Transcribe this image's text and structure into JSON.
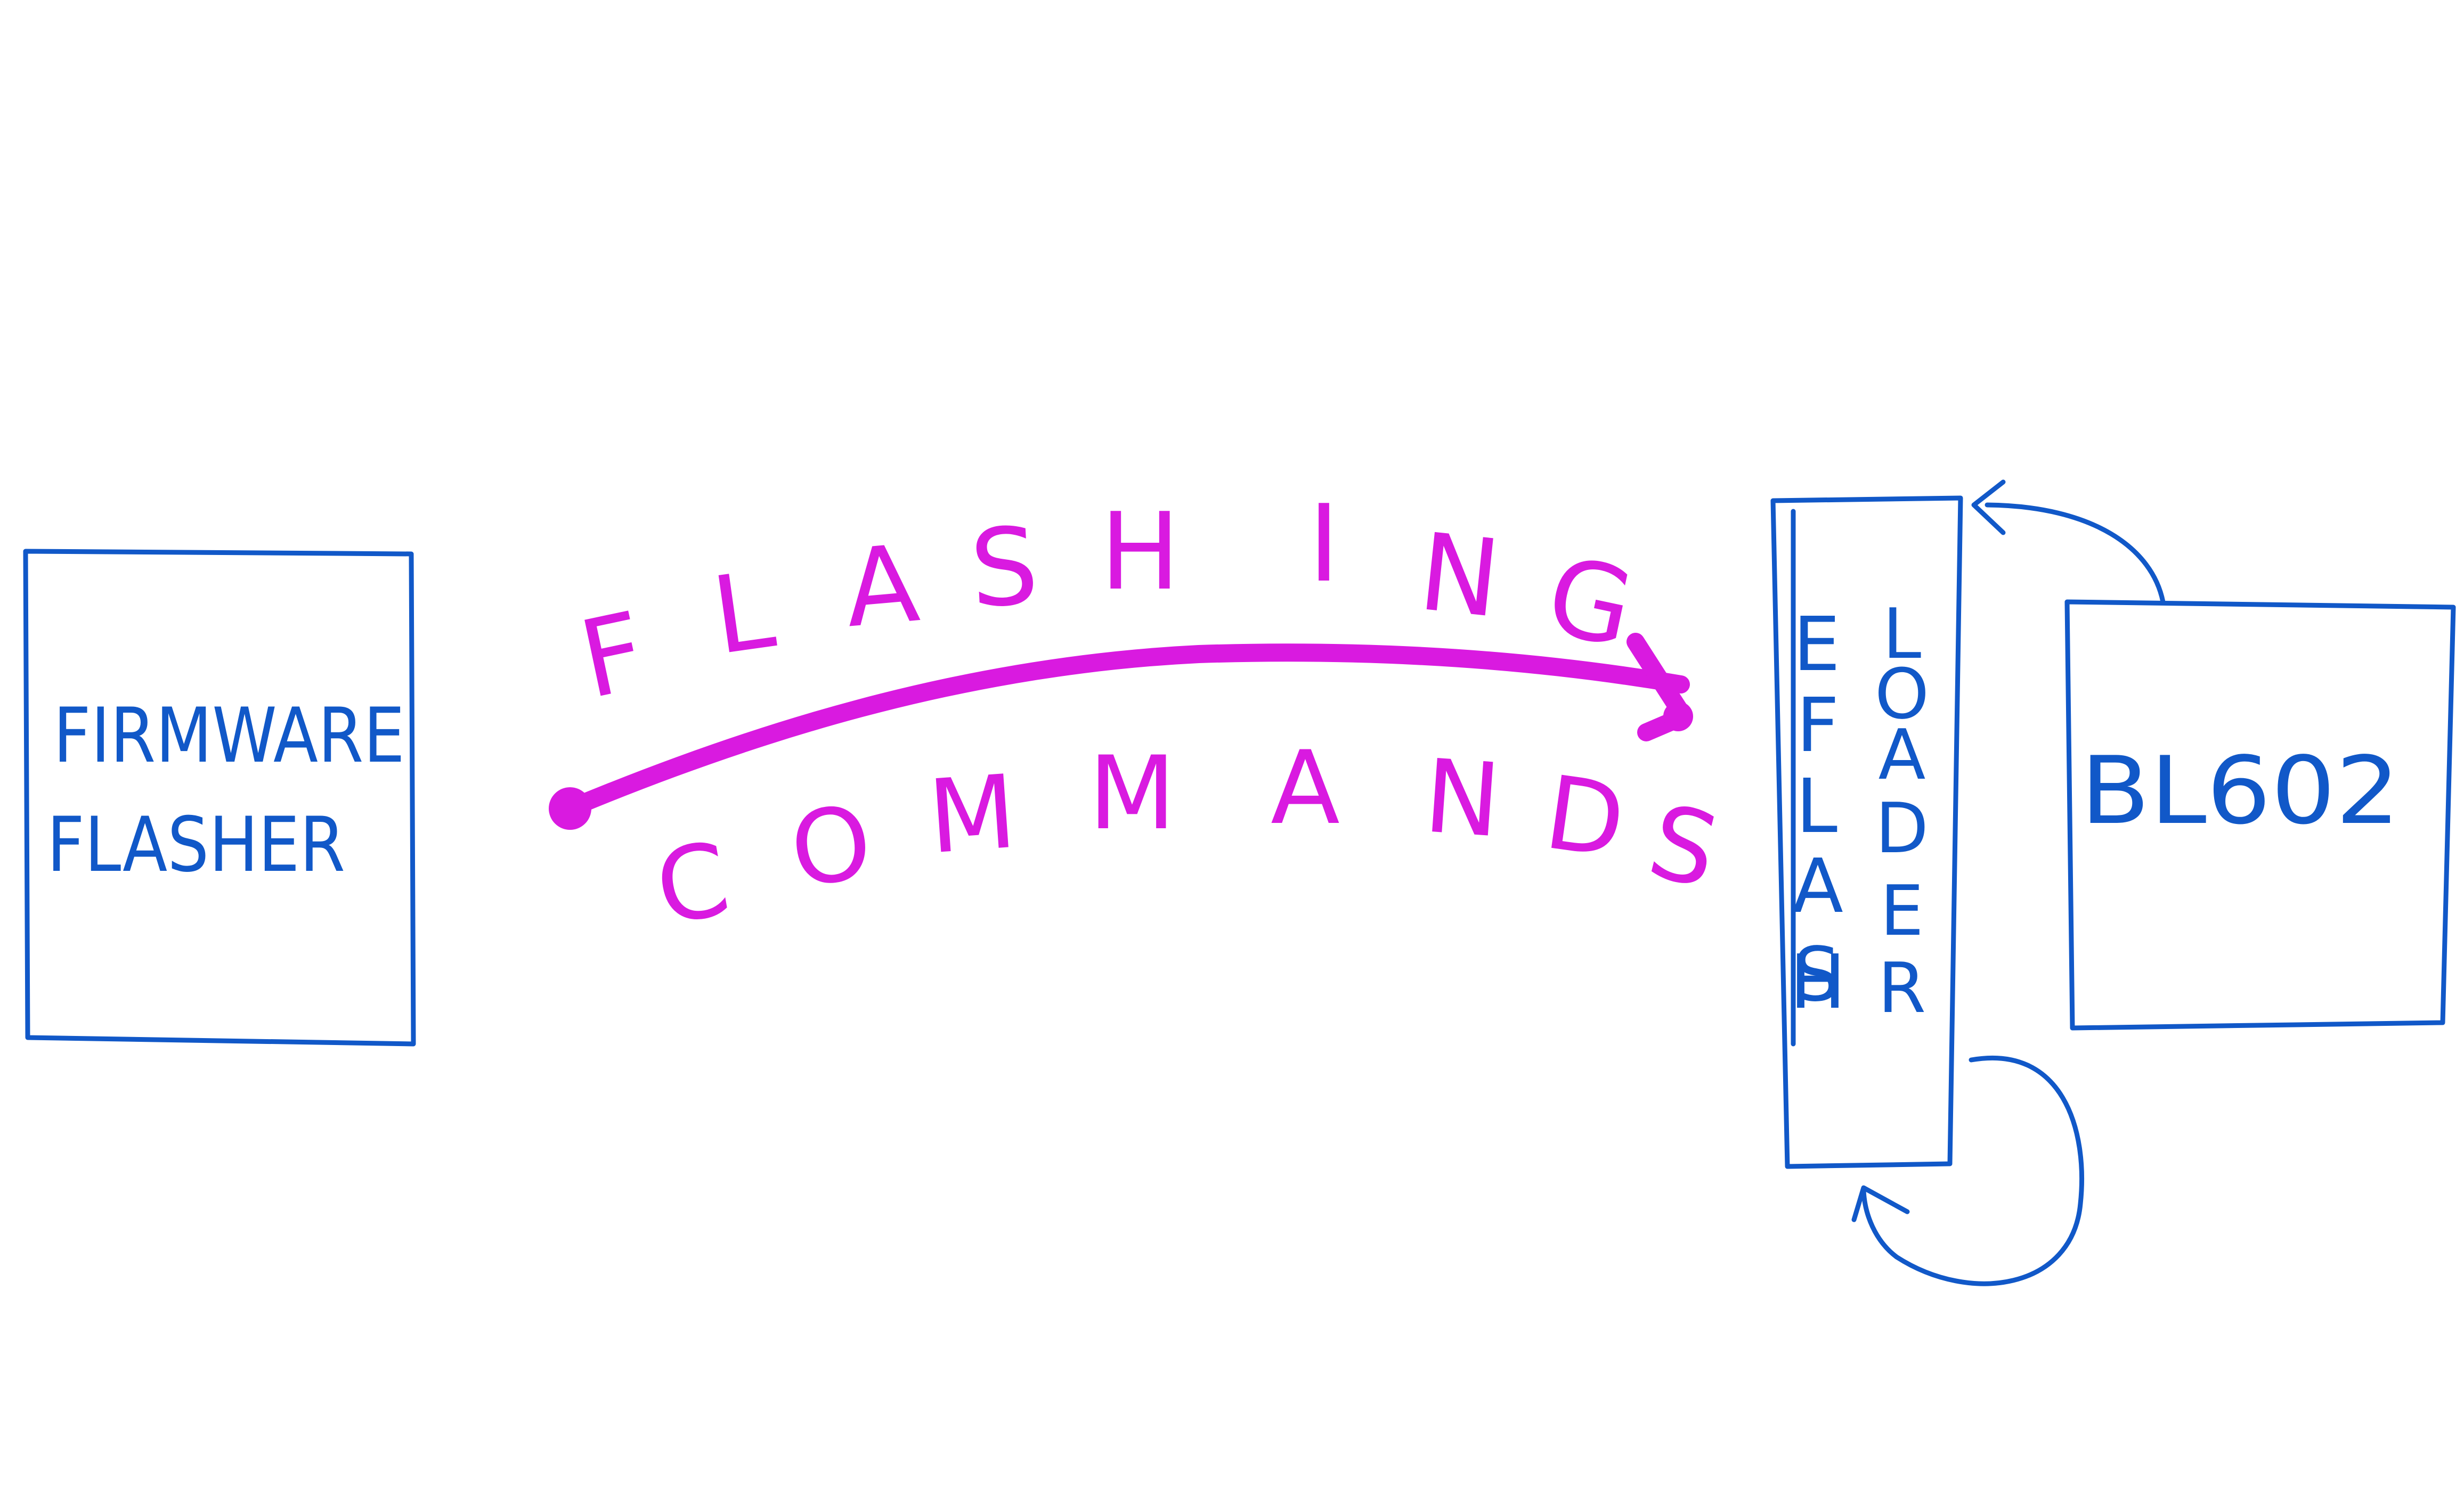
{
  "colors": {
    "blue": "#1158c8",
    "magenta": "#d91ae0",
    "background": "#ffffff"
  },
  "nodes": {
    "firmware_flasher": {
      "line1": "FIRMWARE",
      "line2": "FLASHER"
    },
    "eflash_loader": {
      "col1": [
        "E",
        "F",
        "L",
        "A",
        "S",
        "H"
      ],
      "col2": [
        "L",
        "O",
        "A",
        "D",
        "E",
        "R"
      ]
    },
    "bl602": {
      "label": "BL602"
    }
  },
  "edges": {
    "flashing_commands": {
      "upper": [
        "F",
        "L",
        "A",
        "S",
        "H",
        "I",
        "N",
        "G"
      ],
      "lower": [
        "C",
        "O",
        "M",
        "M",
        "A",
        "N",
        "D",
        "S"
      ]
    }
  }
}
